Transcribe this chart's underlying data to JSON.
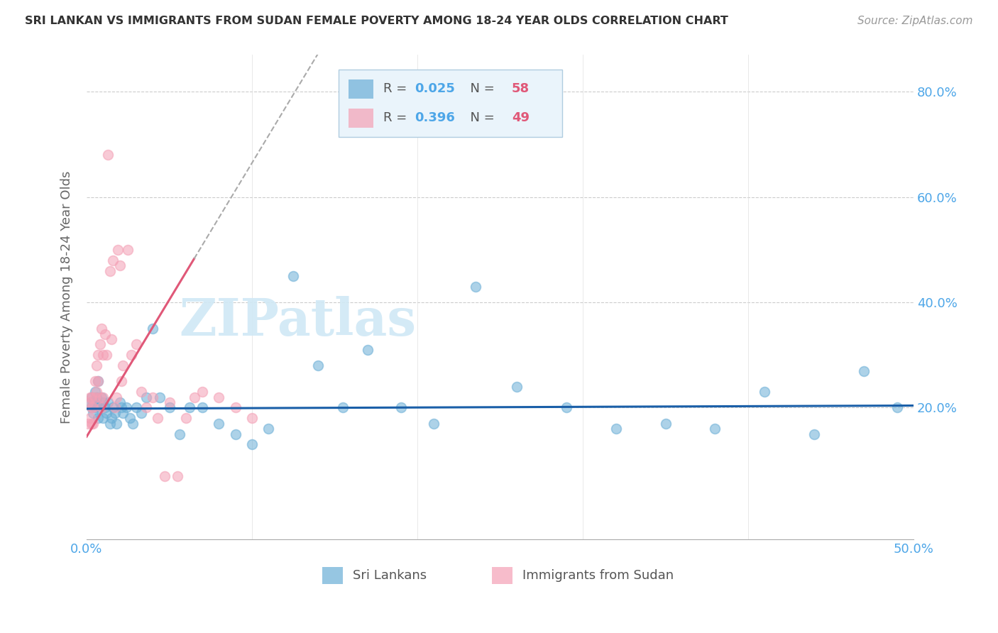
{
  "title": "SRI LANKAN VS IMMIGRANTS FROM SUDAN FEMALE POVERTY AMONG 18-24 YEAR OLDS CORRELATION CHART",
  "source": "Source: ZipAtlas.com",
  "ylabel": "Female Poverty Among 18-24 Year Olds",
  "xlim": [
    0.0,
    0.5
  ],
  "ylim": [
    -0.05,
    0.87
  ],
  "ytick_positions": [
    0.2,
    0.4,
    0.6,
    0.8
  ],
  "ytick_labels": [
    "20.0%",
    "40.0%",
    "60.0%",
    "80.0%"
  ],
  "xtick_positions": [
    0.0,
    0.1,
    0.2,
    0.3,
    0.4,
    0.5
  ],
  "xtick_labels": [
    "0.0%",
    "",
    "",
    "",
    "",
    "50.0%"
  ],
  "sri_lanka_color": "#6aaed6",
  "sudan_color": "#f4a0b5",
  "sri_lanka_line_color": "#1a5fa8",
  "sudan_line_color": "#e05878",
  "sri_lanka_R": 0.025,
  "sri_lanka_N": 58,
  "sudan_R": 0.396,
  "sudan_N": 49,
  "legend_box_color": "#eaf4fb",
  "legend_border_color": "#b0cce0",
  "r_value_color": "#4da6e8",
  "n_value_color": "#e05878",
  "watermark_color": "#d0e8f5",
  "background_color": "#ffffff",
  "grid_color": "#cccccc",
  "axis_tick_color": "#4da6e8",
  "ylabel_color": "#666666",
  "title_color": "#333333",
  "source_color": "#999999",
  "sri_lankans_x": [
    0.002,
    0.003,
    0.003,
    0.004,
    0.004,
    0.005,
    0.005,
    0.006,
    0.006,
    0.007,
    0.007,
    0.008,
    0.009,
    0.01,
    0.01,
    0.011,
    0.012,
    0.013,
    0.014,
    0.015,
    0.016,
    0.017,
    0.018,
    0.02,
    0.021,
    0.022,
    0.024,
    0.026,
    0.028,
    0.03,
    0.033,
    0.036,
    0.04,
    0.044,
    0.05,
    0.056,
    0.062,
    0.07,
    0.08,
    0.09,
    0.1,
    0.11,
    0.125,
    0.14,
    0.155,
    0.17,
    0.19,
    0.21,
    0.235,
    0.26,
    0.29,
    0.32,
    0.35,
    0.38,
    0.41,
    0.44,
    0.47,
    0.49
  ],
  "sri_lankans_y": [
    0.21,
    0.22,
    0.2,
    0.21,
    0.19,
    0.23,
    0.2,
    0.22,
    0.21,
    0.25,
    0.18,
    0.2,
    0.22,
    0.21,
    0.18,
    0.2,
    0.19,
    0.21,
    0.17,
    0.18,
    0.2,
    0.19,
    0.17,
    0.21,
    0.2,
    0.19,
    0.2,
    0.18,
    0.17,
    0.2,
    0.19,
    0.22,
    0.35,
    0.22,
    0.2,
    0.15,
    0.2,
    0.2,
    0.17,
    0.15,
    0.13,
    0.16,
    0.45,
    0.28,
    0.2,
    0.31,
    0.2,
    0.17,
    0.43,
    0.24,
    0.2,
    0.16,
    0.17,
    0.16,
    0.23,
    0.15,
    0.27,
    0.2
  ],
  "sudan_x": [
    0.001,
    0.001,
    0.002,
    0.002,
    0.003,
    0.003,
    0.003,
    0.004,
    0.004,
    0.005,
    0.005,
    0.006,
    0.006,
    0.007,
    0.007,
    0.008,
    0.008,
    0.009,
    0.009,
    0.01,
    0.01,
    0.011,
    0.012,
    0.013,
    0.014,
    0.015,
    0.016,
    0.017,
    0.018,
    0.019,
    0.02,
    0.021,
    0.022,
    0.025,
    0.027,
    0.03,
    0.033,
    0.036,
    0.04,
    0.043,
    0.047,
    0.05,
    0.055,
    0.06,
    0.065,
    0.07,
    0.08,
    0.09,
    0.1
  ],
  "sudan_y": [
    0.21,
    0.17,
    0.22,
    0.18,
    0.2,
    0.22,
    0.17,
    0.2,
    0.17,
    0.25,
    0.22,
    0.28,
    0.23,
    0.3,
    0.25,
    0.32,
    0.22,
    0.35,
    0.2,
    0.3,
    0.22,
    0.34,
    0.3,
    0.68,
    0.46,
    0.33,
    0.48,
    0.2,
    0.22,
    0.5,
    0.47,
    0.25,
    0.28,
    0.5,
    0.3,
    0.32,
    0.23,
    0.2,
    0.22,
    0.18,
    0.07,
    0.21,
    0.07,
    0.18,
    0.22,
    0.23,
    0.22,
    0.2,
    0.18
  ]
}
